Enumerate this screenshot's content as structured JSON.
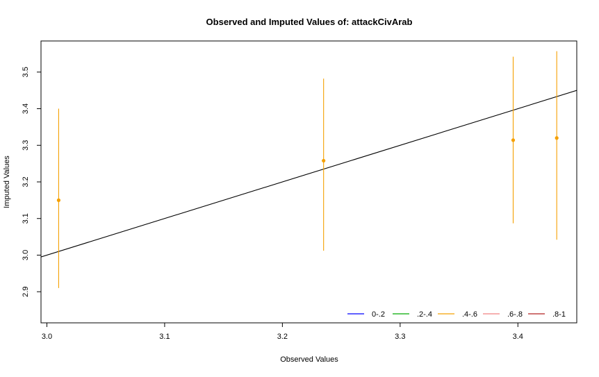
{
  "chart_data": {
    "type": "scatter",
    "title": "Observed and Imputed Values of: attackCivArab",
    "xlabel": "Observed Values",
    "ylabel": "Imputed Values",
    "xlim": [
      2.995,
      3.45
    ],
    "ylim": [
      2.815,
      3.585
    ],
    "x_ticks": [
      3.0,
      3.1,
      3.2,
      3.3,
      3.4
    ],
    "x_tick_labels": [
      "3.0",
      "3.1",
      "3.2",
      "3.3",
      "3.4"
    ],
    "y_ticks": [
      2.9,
      3.0,
      3.1,
      3.2,
      3.3,
      3.4,
      3.5
    ],
    "y_tick_labels": [
      "2.9",
      "3.0",
      "3.1",
      "3.2",
      "3.3",
      "3.4",
      "3.5"
    ],
    "grid": false,
    "points": [
      {
        "x": 3.01,
        "y": 3.15,
        "low": 2.91,
        "high": 3.4,
        "group": ".4-.6"
      },
      {
        "x": 3.235,
        "y": 3.258,
        "low": 3.012,
        "high": 3.482,
        "group": ".4-.6"
      },
      {
        "x": 3.396,
        "y": 3.314,
        "low": 3.087,
        "high": 3.542,
        "group": ".4-.6"
      },
      {
        "x": 3.433,
        "y": 3.32,
        "low": 3.042,
        "high": 3.557,
        "group": ".4-.6"
      }
    ],
    "reference_line": {
      "type": "y=x",
      "color": "#000000"
    },
    "legend": {
      "placement": "bottom-right",
      "entries": [
        {
          "label": "0-.2",
          "color": "#0000ff"
        },
        {
          "label": ".2-.4",
          "color": "#00aa00"
        },
        {
          "label": ".4-.6",
          "color": "#f5a000"
        },
        {
          "label": ".6-.8",
          "color": "#f08080"
        },
        {
          "label": ".8-1",
          "color": "#b22222"
        }
      ]
    },
    "point_color": "#f5a000"
  }
}
